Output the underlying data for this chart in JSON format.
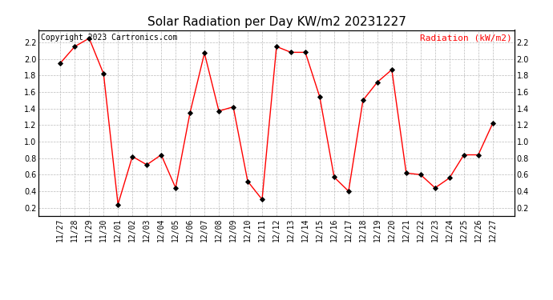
{
  "title": "Solar Radiation per Day KW/m2 20231227",
  "copyright": "Copyright 2023 Cartronics.com",
  "legend_label": "Radiation (kW/m2)",
  "dates": [
    "11/27",
    "11/28",
    "11/29",
    "11/30",
    "12/01",
    "12/02",
    "12/03",
    "12/04",
    "12/05",
    "12/06",
    "12/07",
    "12/08",
    "12/09",
    "12/10",
    "12/11",
    "12/12",
    "12/13",
    "12/14",
    "12/15",
    "12/16",
    "12/17",
    "12/18",
    "12/19",
    "12/20",
    "12/21",
    "12/22",
    "12/23",
    "12/24",
    "12/25",
    "12/26",
    "12/27"
  ],
  "values": [
    1.95,
    2.15,
    2.25,
    1.82,
    0.24,
    0.82,
    0.72,
    0.84,
    0.44,
    1.35,
    2.07,
    1.37,
    1.42,
    0.52,
    0.3,
    2.15,
    2.08,
    2.08,
    1.54,
    0.57,
    0.4,
    1.5,
    1.72,
    1.87,
    0.62,
    0.6,
    0.44,
    0.56,
    0.84,
    0.84,
    1.22
  ],
  "line_color": "red",
  "marker_color": "black",
  "grid_color": "#bbbbbb",
  "bg_color": "#ffffff",
  "ylim": [
    0.1,
    2.35
  ],
  "yticks": [
    0.2,
    0.4,
    0.6,
    0.8,
    1.0,
    1.2,
    1.4,
    1.6,
    1.8,
    2.0,
    2.2
  ],
  "title_fontsize": 11,
  "copyright_fontsize": 7,
  "legend_fontsize": 8,
  "tick_fontsize": 7
}
